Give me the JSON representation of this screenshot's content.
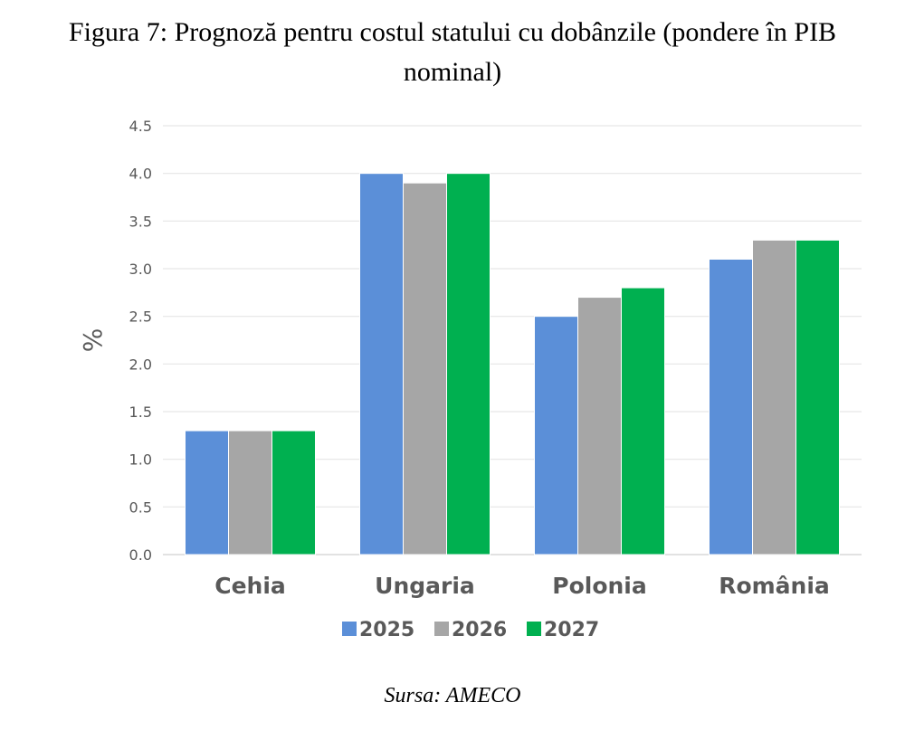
{
  "figure": {
    "title": "Figura 7: Prognoză pentru costul statului cu dobânzile (pondere în PIB nominal)",
    "source": "Sursa: AMECO"
  },
  "chart_data": {
    "type": "bar",
    "categories": [
      "Cehia",
      "Ungaria",
      "Polonia",
      "România"
    ],
    "series": [
      {
        "name": "2025",
        "color": "#5B8FD8",
        "values": [
          1.3,
          4.0,
          2.5,
          3.1
        ]
      },
      {
        "name": "2026",
        "color": "#A6A6A6",
        "values": [
          1.3,
          3.9,
          2.7,
          3.3
        ]
      },
      {
        "name": "2027",
        "color": "#00B050",
        "values": [
          1.3,
          4.0,
          2.8,
          3.3
        ]
      }
    ],
    "title": "",
    "xlabel": "",
    "ylabel": "%",
    "ylim": [
      0,
      4.5
    ],
    "yticks": [
      "0.0",
      "0.5",
      "1.0",
      "1.5",
      "2.0",
      "2.5",
      "3.0",
      "3.5",
      "4.0",
      "4.5"
    ],
    "grid": true,
    "legend_position": "bottom"
  }
}
